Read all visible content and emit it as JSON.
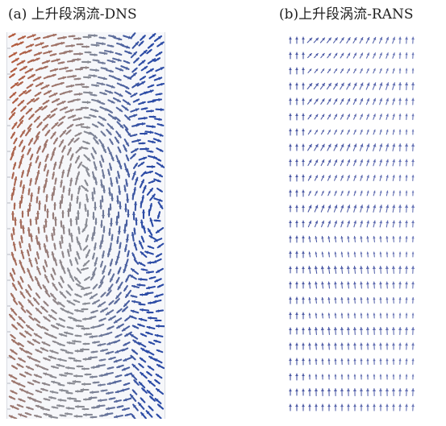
{
  "figure": {
    "panel_a": {
      "caption": "(a) 上升段涡流-DNS",
      "vector_field": "dns-swirl",
      "colors": {
        "warm": "#b45a3c",
        "mid": "#8a8c94",
        "cool": "#2a4aa5"
      }
    },
    "panel_b": {
      "caption": "(b)上升段涡流-RANS",
      "vector_field": "rans-rows",
      "colors": {
        "arrow": "#3b4a9a",
        "arrow_light": "#7d89c4"
      }
    }
  }
}
